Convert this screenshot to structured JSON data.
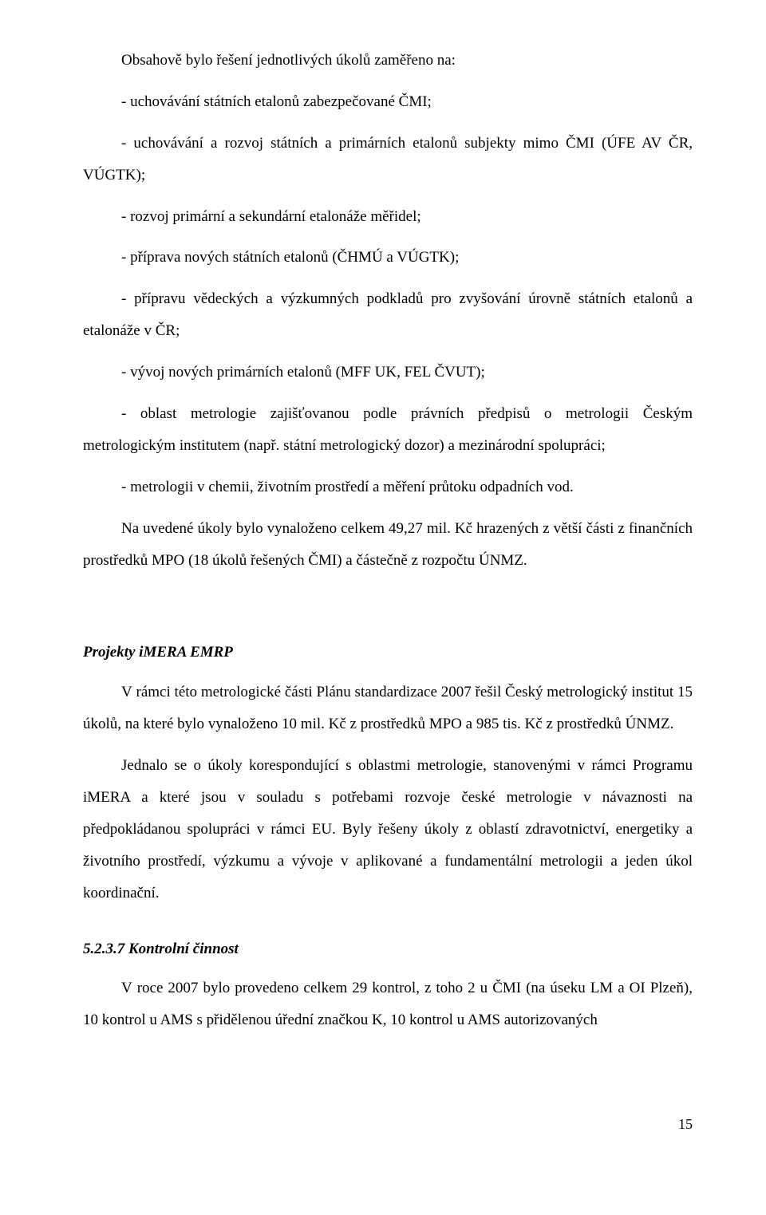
{
  "intro": "Obsahově bylo řešení jednotlivých úkolů zaměřeno na:",
  "bullets": [
    "- uchovávání státních etalonů zabezpečované ČMI;",
    "- uchovávání a rozvoj státních a primárních etalonů subjekty mimo ČMI (ÚFE AV ČR, VÚGTK);",
    "- rozvoj primární a sekundární etalonáže měřidel;",
    "- příprava nových státních etalonů (ČHMÚ a VÚGTK);"
  ],
  "para_prep": "- přípravu vědeckých a výzkumných podkladů pro zvyšování úrovně státních etalonů a etalonáže v ČR;",
  "bullet_vyvoj": "- vývoj nových primárních etalonů (MFF UK, FEL ČVUT);",
  "para_oblast": "- oblast metrologie zajišťovanou podle právních předpisů o metrologii Českým metrologickým institutem (např. státní metrologický dozor) a mezinárodní spolupráci;",
  "bullet_chem": "- metrologii v chemii, životním prostředí  a měření průtoku odpadních vod.",
  "para_total": "Na uvedené úkoly bylo vynaloženo celkem 49,27 mil. Kč hrazených z větší části z finančních prostředků MPO (18 úkolů řešených ČMI) a částečně z rozpočtu ÚNMZ.",
  "section1_head": "Projekty iMERA EMRP",
  "section1_p1": "V rámci této metrologické části Plánu standardizace 2007 řešil Český metrologický institut 15 úkolů, na které bylo vynaloženo 10 mil. Kč z prostředků MPO a 985 tis. Kč z prostředků ÚNMZ.",
  "section1_p2": "Jednalo se o úkoly korespondující s oblastmi metrologie, stanovenými v rámci Programu iMERA a které jsou v souladu s potřebami rozvoje české metrologie v návaznosti na předpokládanou spolupráci v rámci EU. Byly řešeny úkoly z oblastí zdravotnictví, energetiky a životního prostředí, výzkumu a vývoje v aplikované a fundamentální metrologii a jeden úkol koordinační.",
  "section2_head": "5.2.3.7  Kontrolní činnost",
  "section2_p1": "V roce 2007 bylo provedeno celkem 29 kontrol, z toho 2 u ČMI (na úseku LM a OI Plzeň), 10 kontrol u AMS s přidělenou úřední značkou K, 10 kontrol u AMS autorizovaných",
  "page_number": "15"
}
